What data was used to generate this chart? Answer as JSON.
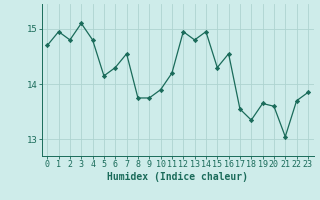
{
  "x": [
    0,
    1,
    2,
    3,
    4,
    5,
    6,
    7,
    8,
    9,
    10,
    11,
    12,
    13,
    14,
    15,
    16,
    17,
    18,
    19,
    20,
    21,
    22,
    23
  ],
  "y": [
    14.7,
    14.95,
    14.8,
    15.1,
    14.8,
    14.15,
    14.3,
    14.55,
    13.75,
    13.75,
    13.9,
    14.2,
    14.95,
    14.8,
    14.95,
    14.3,
    14.55,
    13.55,
    13.35,
    13.65,
    13.6,
    13.05,
    13.7,
    13.85
  ],
  "line_color": "#1a6b5a",
  "marker": "D",
  "marker_size": 2.2,
  "bg_color": "#ceecea",
  "grid_color": "#aed4d0",
  "xlabel": "Humidex (Indice chaleur)",
  "xlim": [
    -0.5,
    23.5
  ],
  "ylim": [
    12.7,
    15.45
  ],
  "yticks": [
    13,
    14,
    15
  ],
  "xticks": [
    0,
    1,
    2,
    3,
    4,
    5,
    6,
    7,
    8,
    9,
    10,
    11,
    12,
    13,
    14,
    15,
    16,
    17,
    18,
    19,
    20,
    21,
    22,
    23
  ],
  "tick_color": "#1a6b5a",
  "label_color": "#1a6b5a",
  "font_size_tick": 6.0,
  "font_size_xlabel": 7.0
}
